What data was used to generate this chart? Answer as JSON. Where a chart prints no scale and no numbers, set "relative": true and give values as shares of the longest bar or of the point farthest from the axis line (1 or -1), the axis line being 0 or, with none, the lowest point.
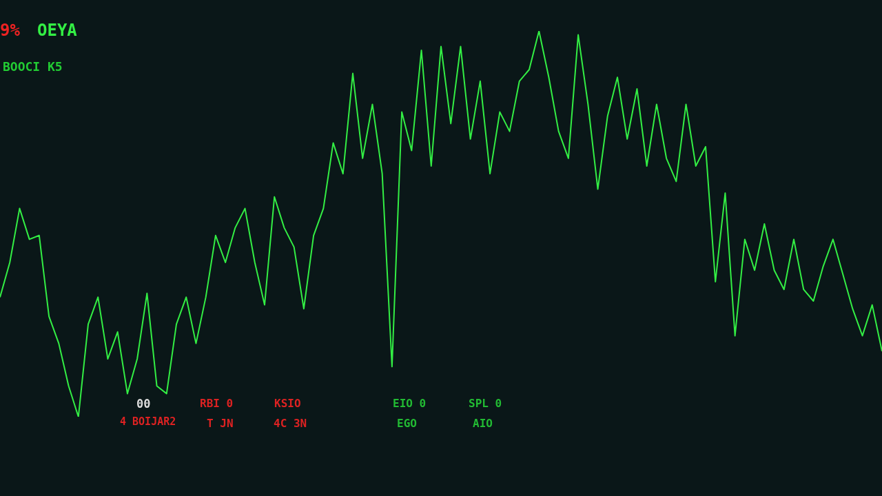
{
  "chart_data": {
    "type": "line",
    "relative": true,
    "marker": "none",
    "line_style": "solid",
    "categories": [
      null,
      null,
      null,
      null,
      null,
      null,
      null,
      null,
      null,
      null,
      null,
      null,
      null,
      null,
      null,
      null,
      null,
      null,
      null,
      null,
      null,
      null,
      null,
      null,
      null,
      null,
      null,
      null,
      null,
      null,
      null,
      null,
      null,
      null,
      null,
      null,
      null,
      null,
      null,
      null,
      null,
      null,
      null,
      null,
      null,
      null,
      null,
      null,
      null,
      null,
      null,
      null,
      null,
      null,
      null,
      null,
      null,
      null,
      null,
      null,
      null,
      null,
      null,
      null,
      null,
      null,
      null,
      null,
      null,
      null,
      null,
      null,
      null,
      null,
      null,
      null,
      null,
      null,
      null,
      null,
      null,
      null,
      null,
      null,
      null,
      null,
      null,
      null,
      null,
      null,
      null
    ],
    "series": [
      {
        "color": "#33ee44",
        "values": [
          0.31,
          0.4,
          0.54,
          0.46,
          0.47,
          0.26,
          0.19,
          0.08,
          0,
          0.24,
          0.31,
          0.15,
          0.22,
          0.06,
          0.15,
          0.32,
          0.08,
          0.06,
          0.24,
          0.31,
          0.19,
          0.31,
          0.47,
          0.4,
          0.49,
          0.54,
          0.4,
          0.29,
          0.57,
          0.49,
          0.44,
          0.28,
          0.47,
          0.54,
          0.71,
          0.63,
          0.89,
          0.67,
          0.81,
          0.63,
          0.13,
          0.79,
          0.69,
          0.95,
          0.65,
          0.96,
          0.76,
          0.96,
          0.72,
          0.87,
          0.63,
          0.79,
          0.74,
          0.87,
          0.9,
          1,
          0.88,
          0.74,
          0.67,
          0.99,
          0.81,
          0.59,
          0.78,
          0.88,
          0.72,
          0.85,
          0.65,
          0.81,
          0.67,
          0.61,
          0.81,
          0.65,
          0.7,
          0.35,
          0.58,
          0.21,
          0.46,
          0.38,
          0.5,
          0.38,
          0.33,
          0.46,
          0.33,
          0.3,
          0.39,
          0.46,
          0.37,
          0.28,
          0.21,
          0.29,
          0.17
        ]
      }
    ],
    "annotations": [
      "9%",
      "OEYA",
      "BOOCI K5",
      "00",
      "4 BOIJAR2",
      "RBI 0",
      "T JN",
      "KSIO",
      "4C 3N",
      "EIO 0",
      "EGO",
      "SPL 0",
      "AIO"
    ]
  }
}
